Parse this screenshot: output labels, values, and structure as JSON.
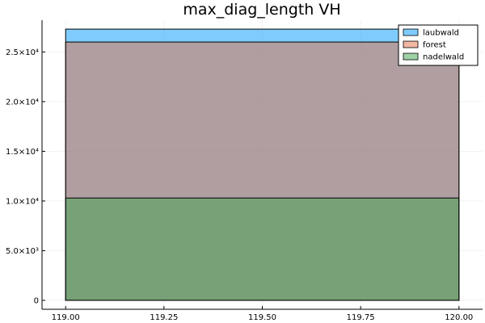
{
  "chart_data": {
    "type": "bar",
    "title": "max_diag_length VH",
    "xlabel": "",
    "ylabel": "",
    "xlim": [
      118.94,
      120.06
    ],
    "ylim": [
      -900,
      28200
    ],
    "grid": true,
    "legend_position": "top-right",
    "bin": [
      119.0,
      120.0
    ],
    "x_ticks": [
      {
        "value": 119.0,
        "label": "119.00"
      },
      {
        "value": 119.25,
        "label": "119.25"
      },
      {
        "value": 119.5,
        "label": "119.50"
      },
      {
        "value": 119.75,
        "label": "119.75"
      },
      {
        "value": 120.0,
        "label": "120.00"
      }
    ],
    "y_ticks": [
      {
        "value": 0,
        "label": "0"
      },
      {
        "value": 5000,
        "label": "5.0×10³"
      },
      {
        "value": 10000,
        "label": "1.0×10⁴"
      },
      {
        "value": 15000,
        "label": "1.5×10⁴"
      },
      {
        "value": 20000,
        "label": "2.0×10⁴"
      },
      {
        "value": 25000,
        "label": "2.5×10⁴"
      }
    ],
    "series": [
      {
        "name": "laubwald",
        "value": 27300,
        "color": "#009af9",
        "opacity": 0.5
      },
      {
        "name": "forest",
        "value": 26000,
        "color": "#e26f46",
        "opacity": 0.5
      },
      {
        "name": "nadelwald",
        "value": 10300,
        "color": "#3da44d",
        "opacity": 0.5
      }
    ]
  }
}
